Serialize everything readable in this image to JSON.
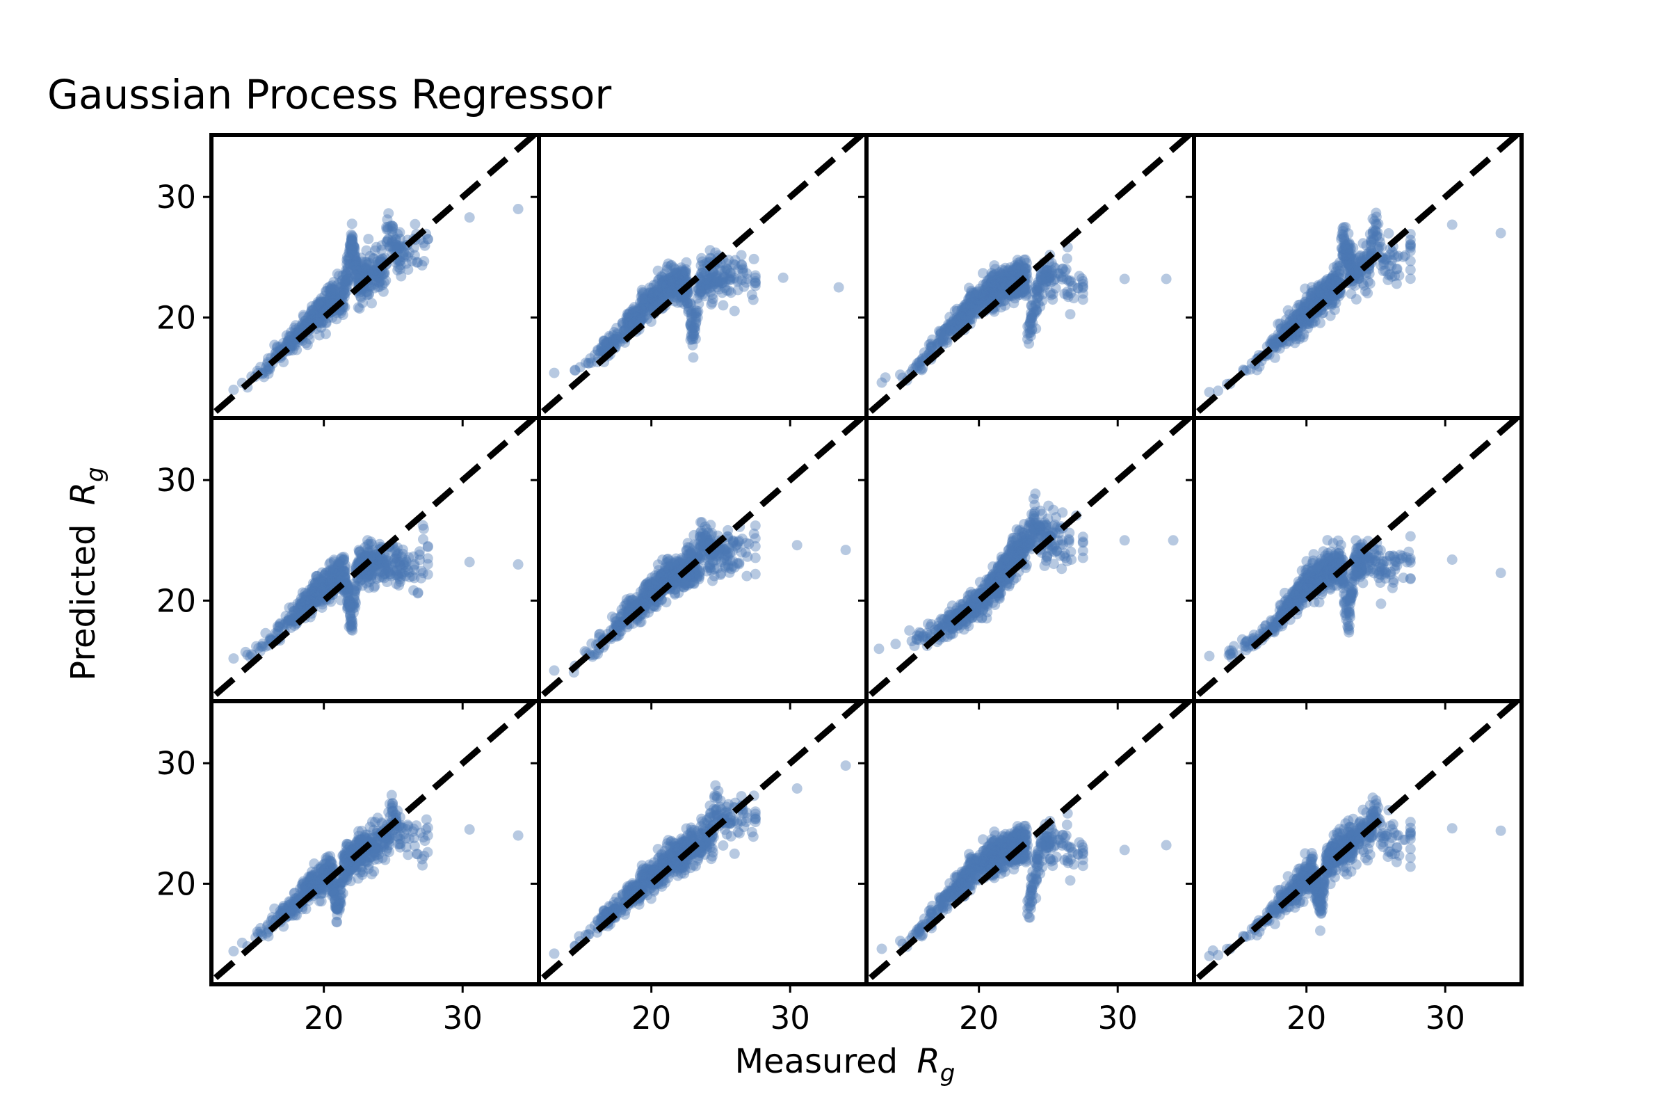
{
  "chart_data": {
    "type": "scatter",
    "title": "Gaussian Process Regressor",
    "xlabel": "Measured",
    "ylabel": "Predicted",
    "axis_symbol": {
      "base": "R",
      "subscript": "g"
    },
    "layout": {
      "rows": 3,
      "cols": 4,
      "sharex": true,
      "sharey": true
    },
    "xlim": [
      12.2,
      35.2
    ],
    "ylim": [
      12.0,
      34.8
    ],
    "xticks": [
      20,
      30
    ],
    "yticks": [
      20,
      30
    ],
    "grid": false,
    "legend": "none",
    "reference_line": {
      "style": "dashed",
      "color": "#000000",
      "x": [
        12.2,
        35.2
      ],
      "y": [
        12.2,
        35.2
      ]
    },
    "point_color": "#4c78b5",
    "point_alpha": 0.4,
    "panels": [
      {
        "row": 0,
        "col": 0,
        "points": [
          [
            13.5,
            14.0
          ],
          [
            14.5,
            14.2
          ],
          [
            15.5,
            15.4
          ],
          [
            16.5,
            16.7
          ],
          [
            17.5,
            17.8
          ],
          [
            18.5,
            19.0
          ],
          [
            19.5,
            20.0
          ],
          [
            20.5,
            21.2
          ],
          [
            21.5,
            22.0
          ],
          [
            22.5,
            22.8
          ],
          [
            23.5,
            23.6
          ],
          [
            24.5,
            24.4
          ],
          [
            25.5,
            25.0
          ],
          [
            26.5,
            25.8
          ],
          [
            27.5,
            26.5
          ],
          [
            30.5,
            28.3
          ],
          [
            34.0,
            29.0
          ],
          [
            22.0,
            26.5
          ],
          [
            24.5,
            27.5
          ]
        ]
      },
      {
        "row": 0,
        "col": 1,
        "points": [
          [
            13.0,
            15.4
          ],
          [
            14.5,
            15.6
          ],
          [
            15.5,
            16.2
          ],
          [
            16.5,
            17.2
          ],
          [
            17.5,
            18.2
          ],
          [
            18.5,
            19.6
          ],
          [
            19.5,
            21.0
          ],
          [
            20.5,
            22.0
          ],
          [
            21.5,
            22.8
          ],
          [
            22.5,
            23.0
          ],
          [
            23.5,
            23.2
          ],
          [
            24.5,
            23.3
          ],
          [
            25.5,
            23.2
          ],
          [
            26.5,
            23.1
          ],
          [
            27.5,
            23.0
          ],
          [
            29.5,
            23.3
          ],
          [
            33.5,
            22.5
          ],
          [
            23.0,
            18.2
          ]
        ]
      },
      {
        "row": 0,
        "col": 2,
        "points": [
          [
            13.0,
            14.6
          ],
          [
            14.5,
            15.0
          ],
          [
            15.5,
            16.0
          ],
          [
            16.5,
            17.2
          ],
          [
            17.5,
            18.5
          ],
          [
            18.5,
            19.8
          ],
          [
            19.5,
            21.0
          ],
          [
            20.5,
            22.0
          ],
          [
            21.5,
            22.6
          ],
          [
            22.5,
            23.0
          ],
          [
            23.5,
            23.2
          ],
          [
            24.5,
            23.3
          ],
          [
            25.5,
            23.2
          ],
          [
            26.5,
            23.0
          ],
          [
            27.5,
            23.0
          ],
          [
            30.5,
            23.2
          ],
          [
            33.5,
            23.2
          ],
          [
            23.5,
            18.2
          ]
        ]
      },
      {
        "row": 0,
        "col": 3,
        "points": [
          [
            13.0,
            13.8
          ],
          [
            14.5,
            14.5
          ],
          [
            15.5,
            15.6
          ],
          [
            16.5,
            16.6
          ],
          [
            17.5,
            17.8
          ],
          [
            18.5,
            19.0
          ],
          [
            19.5,
            19.8
          ],
          [
            20.5,
            21.0
          ],
          [
            21.5,
            22.0
          ],
          [
            22.5,
            22.8
          ],
          [
            23.5,
            23.5
          ],
          [
            24.5,
            24.3
          ],
          [
            25.5,
            25.0
          ],
          [
            26.5,
            25.0
          ],
          [
            27.5,
            25.8
          ],
          [
            30.5,
            27.7
          ],
          [
            34.0,
            27.0
          ],
          [
            22.5,
            26.5
          ],
          [
            25.0,
            27.8
          ]
        ]
      },
      {
        "row": 1,
        "col": 0,
        "points": [
          [
            13.5,
            15.2
          ],
          [
            14.5,
            15.5
          ],
          [
            15.5,
            16.2
          ],
          [
            16.5,
            17.3
          ],
          [
            17.5,
            18.4
          ],
          [
            18.5,
            19.6
          ],
          [
            19.5,
            20.6
          ],
          [
            20.5,
            21.6
          ],
          [
            21.5,
            22.4
          ],
          [
            22.5,
            23.0
          ],
          [
            23.5,
            23.2
          ],
          [
            24.5,
            23.2
          ],
          [
            25.5,
            23.0
          ],
          [
            26.5,
            22.9
          ],
          [
            27.5,
            23.5
          ],
          [
            30.5,
            23.2
          ],
          [
            34.0,
            23.0
          ],
          [
            22.0,
            18.2
          ]
        ]
      },
      {
        "row": 1,
        "col": 1,
        "points": [
          [
            13.0,
            14.2
          ],
          [
            14.5,
            14.6
          ],
          [
            15.5,
            15.6
          ],
          [
            16.5,
            16.7
          ],
          [
            17.5,
            17.8
          ],
          [
            18.5,
            19.0
          ],
          [
            19.5,
            20.2
          ],
          [
            20.5,
            21.2
          ],
          [
            21.5,
            22.0
          ],
          [
            22.5,
            22.8
          ],
          [
            23.5,
            23.5
          ],
          [
            24.5,
            24.0
          ],
          [
            25.5,
            24.0
          ],
          [
            26.5,
            24.0
          ],
          [
            27.5,
            24.5
          ],
          [
            30.5,
            24.6
          ],
          [
            34.0,
            24.2
          ],
          [
            23.5,
            25.3
          ]
        ]
      },
      {
        "row": 1,
        "col": 2,
        "points": [
          [
            12.8,
            16.0
          ],
          [
            14.0,
            16.4
          ],
          [
            15.5,
            16.8
          ],
          [
            16.5,
            17.2
          ],
          [
            17.5,
            17.8
          ],
          [
            18.5,
            18.6
          ],
          [
            19.5,
            19.4
          ],
          [
            20.5,
            20.4
          ],
          [
            21.5,
            22.0
          ],
          [
            22.5,
            23.6
          ],
          [
            23.5,
            24.8
          ],
          [
            24.5,
            25.4
          ],
          [
            25.5,
            25.6
          ],
          [
            26.5,
            25.0
          ],
          [
            27.5,
            24.8
          ],
          [
            30.5,
            25.0
          ],
          [
            34.0,
            25.0
          ],
          [
            24.0,
            26.8
          ]
        ]
      },
      {
        "row": 1,
        "col": 3,
        "points": [
          [
            13.0,
            15.4
          ],
          [
            14.5,
            15.6
          ],
          [
            15.5,
            16.2
          ],
          [
            16.5,
            16.8
          ],
          [
            17.5,
            17.8
          ],
          [
            18.5,
            19.2
          ],
          [
            19.5,
            20.6
          ],
          [
            20.5,
            21.8
          ],
          [
            21.5,
            22.5
          ],
          [
            22.5,
            23.0
          ],
          [
            23.5,
            23.2
          ],
          [
            24.5,
            23.2
          ],
          [
            25.5,
            23.0
          ],
          [
            26.5,
            23.2
          ],
          [
            27.5,
            23.5
          ],
          [
            30.5,
            23.4
          ],
          [
            34.0,
            22.3
          ],
          [
            23.0,
            18.2
          ]
        ]
      },
      {
        "row": 2,
        "col": 0,
        "points": [
          [
            13.5,
            14.4
          ],
          [
            14.5,
            14.8
          ],
          [
            15.5,
            15.8
          ],
          [
            16.5,
            16.9
          ],
          [
            17.5,
            17.9
          ],
          [
            18.5,
            19.0
          ],
          [
            19.5,
            20.1
          ],
          [
            20.5,
            20.9
          ],
          [
            21.5,
            21.8
          ],
          [
            22.5,
            22.6
          ],
          [
            23.5,
            23.2
          ],
          [
            24.5,
            23.8
          ],
          [
            25.5,
            24.0
          ],
          [
            26.5,
            23.8
          ],
          [
            27.5,
            24.0
          ],
          [
            30.5,
            24.5
          ],
          [
            34.0,
            24.0
          ],
          [
            21.0,
            18.0
          ],
          [
            25.0,
            25.6
          ]
        ]
      },
      {
        "row": 2,
        "col": 1,
        "points": [
          [
            13.0,
            14.2
          ],
          [
            14.5,
            14.8
          ],
          [
            15.5,
            15.8
          ],
          [
            16.5,
            16.9
          ],
          [
            17.5,
            17.9
          ],
          [
            18.5,
            19.0
          ],
          [
            19.5,
            20.2
          ],
          [
            20.5,
            21.0
          ],
          [
            21.5,
            22.0
          ],
          [
            22.5,
            22.8
          ],
          [
            23.5,
            23.6
          ],
          [
            24.5,
            24.4
          ],
          [
            25.5,
            25.0
          ],
          [
            26.5,
            25.2
          ],
          [
            27.5,
            25.5
          ],
          [
            30.5,
            27.9
          ],
          [
            34.0,
            29.8
          ],
          [
            24.5,
            26.2
          ]
        ]
      },
      {
        "row": 2,
        "col": 2,
        "points": [
          [
            13.0,
            14.6
          ],
          [
            14.5,
            15.0
          ],
          [
            15.5,
            16.0
          ],
          [
            16.5,
            17.2
          ],
          [
            17.5,
            18.5
          ],
          [
            18.5,
            19.8
          ],
          [
            19.5,
            21.0
          ],
          [
            20.5,
            22.0
          ],
          [
            21.5,
            22.6
          ],
          [
            22.5,
            23.0
          ],
          [
            23.5,
            23.2
          ],
          [
            24.5,
            23.3
          ],
          [
            25.5,
            23.2
          ],
          [
            26.5,
            23.0
          ],
          [
            27.5,
            23.0
          ],
          [
            30.5,
            22.8
          ],
          [
            33.5,
            23.2
          ],
          [
            23.5,
            17.5
          ]
        ]
      },
      {
        "row": 2,
        "col": 3,
        "points": [
          [
            13.0,
            14.0
          ],
          [
            14.5,
            14.6
          ],
          [
            15.5,
            15.6
          ],
          [
            16.5,
            16.7
          ],
          [
            17.5,
            17.8
          ],
          [
            18.5,
            19.0
          ],
          [
            19.5,
            20.0
          ],
          [
            20.5,
            21.0
          ],
          [
            21.5,
            21.8
          ],
          [
            22.5,
            22.8
          ],
          [
            23.5,
            23.6
          ],
          [
            24.5,
            24.2
          ],
          [
            25.5,
            24.2
          ],
          [
            26.5,
            24.0
          ],
          [
            27.5,
            24.0
          ],
          [
            30.5,
            24.6
          ],
          [
            34.0,
            24.4
          ],
          [
            25.0,
            26.0
          ],
          [
            21.0,
            18.0
          ]
        ]
      }
    ]
  }
}
